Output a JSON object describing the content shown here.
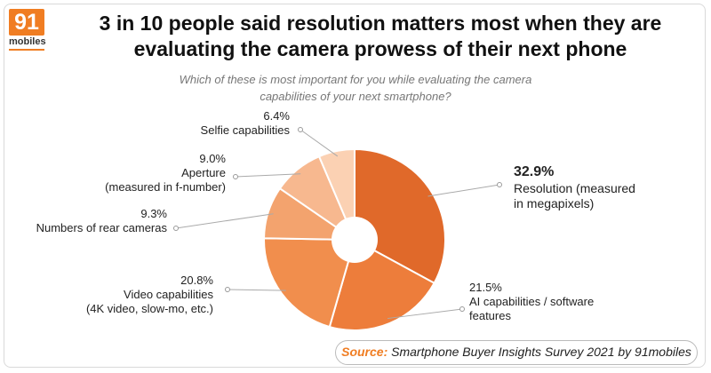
{
  "brand": {
    "logo_number": "91",
    "logo_word": "mobiles",
    "accent": "#f07d22"
  },
  "title_line1": "3 in 10 people said resolution matters most when they are",
  "title_line2": "evaluating the camera prowess of their next phone",
  "subtitle_line1": "Which of these is most important for you while evaluating the camera",
  "subtitle_line2": "capabilities of your next smartphone?",
  "source": {
    "label": "Source:",
    "text": "Smartphone Buyer Insights Survey 2021 by 91mobiles"
  },
  "chart_data": {
    "type": "pie",
    "style": "donut",
    "title": "Which of these is most important for you while evaluating the camera capabilities of your next smartphone?",
    "unit": "%",
    "slices": [
      {
        "label": [
          "Resolution (measured",
          "in megapixels)"
        ],
        "value": 32.9,
        "value_label": "32.9%",
        "color": "#e0692a"
      },
      {
        "label": [
          "AI capabilities / software",
          "features"
        ],
        "value": 21.5,
        "value_label": "21.5%",
        "color": "#ed7d3b"
      },
      {
        "label": [
          "Video capabilities",
          "(4K video, slow-mo, etc.)"
        ],
        "value": 20.8,
        "value_label": "20.8%",
        "color": "#f18e4d"
      },
      {
        "label": [
          "Numbers of rear cameras"
        ],
        "value": 9.3,
        "value_label": "9.3%",
        "color": "#f3a36e"
      },
      {
        "label": [
          "Aperture",
          "(measured in f-number)"
        ],
        "value": 9.0,
        "value_label": "9.0%",
        "color": "#f7b88f"
      },
      {
        "label": [
          "Selfie capabilities"
        ],
        "value": 6.4,
        "value_label": "6.4%",
        "color": "#fbd1b3"
      }
    ]
  }
}
